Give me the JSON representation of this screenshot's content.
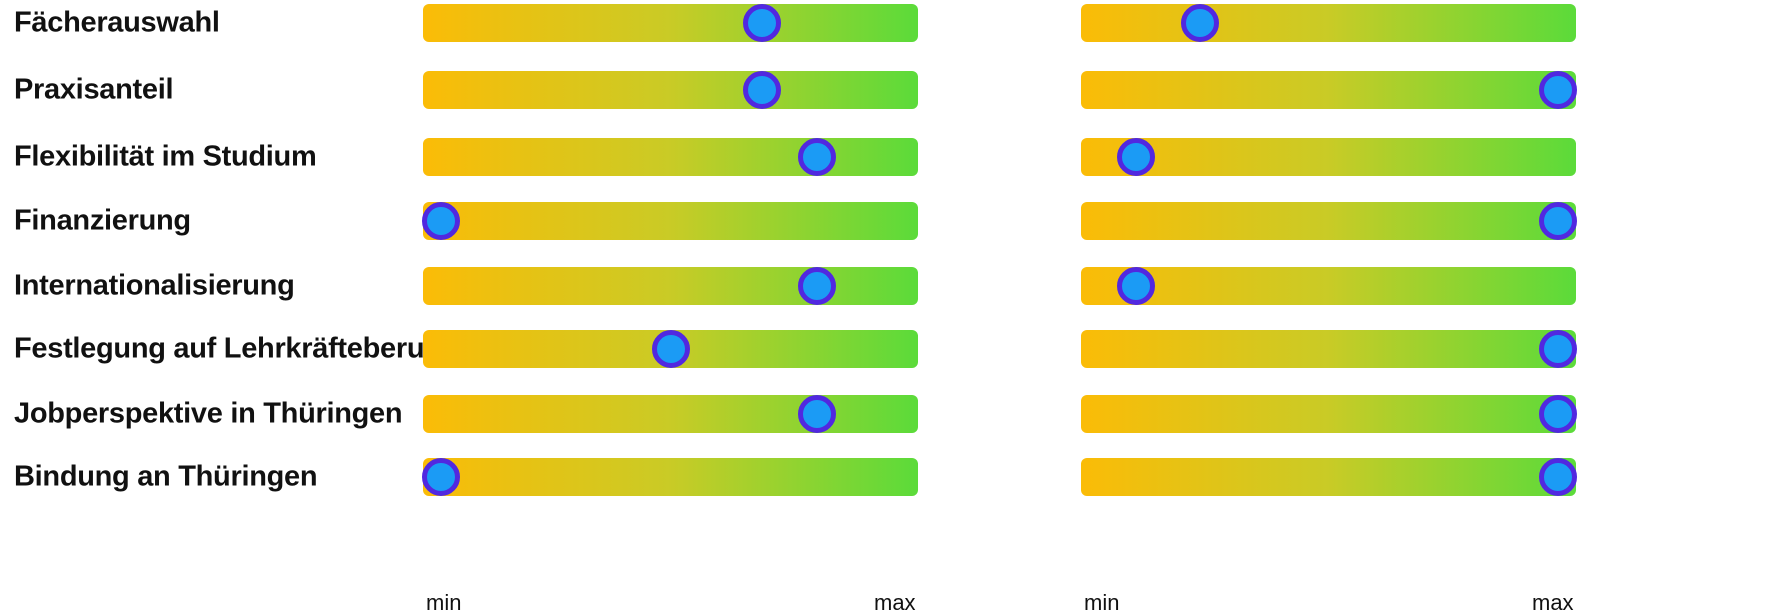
{
  "chart_data": {
    "type": "slider-scale",
    "axis": {
      "min_label": "min",
      "max_label": "max",
      "range": [
        0,
        1
      ]
    },
    "colors": {
      "gradient_start": "#fbbc07",
      "gradient_mid": "#c9cb26",
      "gradient_end": "#5bdb3a",
      "marker_fill": "#1b9bf5",
      "marker_border": "#5128e0"
    },
    "categories": [
      "Fächerauswahl",
      "Praxisanteil",
      "Flexibilität im Studium",
      "Finanzierung",
      "Internationalisierung",
      "Festlegung auf Lehrkräfteberuf",
      "Jobperspektive in Thüringen",
      "Bindung an Thüringen"
    ],
    "panels": [
      {
        "values": [
          0.7,
          0.7,
          0.82,
          0.0,
          0.82,
          0.5,
          0.82,
          0.0
        ]
      },
      {
        "values": [
          0.22,
          1.0,
          0.08,
          1.0,
          0.08,
          1.0,
          1.0,
          1.0
        ]
      }
    ]
  }
}
